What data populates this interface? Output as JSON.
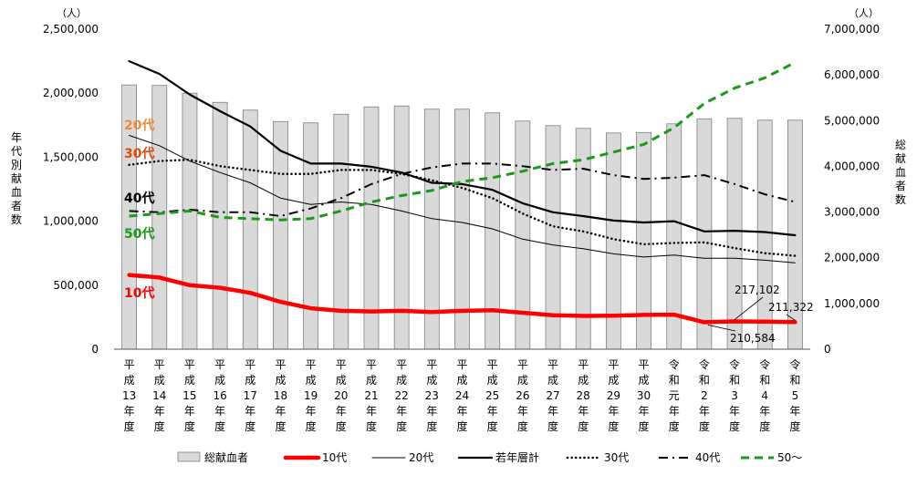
{
  "chart_data": {
    "type": "bar+line",
    "categories": [
      [
        "平",
        "成",
        "13",
        "年",
        "度"
      ],
      [
        "平",
        "成",
        "14",
        "年",
        "度"
      ],
      [
        "平",
        "成",
        "15",
        "年",
        "度"
      ],
      [
        "平",
        "成",
        "16",
        "年",
        "度"
      ],
      [
        "平",
        "成",
        "17",
        "年",
        "度"
      ],
      [
        "平",
        "成",
        "18",
        "年",
        "度"
      ],
      [
        "平",
        "成",
        "19",
        "年",
        "度"
      ],
      [
        "平",
        "成",
        "20",
        "年",
        "度"
      ],
      [
        "平",
        "成",
        "21",
        "年",
        "度"
      ],
      [
        "平",
        "成",
        "22",
        "年",
        "度"
      ],
      [
        "平",
        "成",
        "23",
        "年",
        "度"
      ],
      [
        "平",
        "成",
        "24",
        "年",
        "度"
      ],
      [
        "平",
        "成",
        "25",
        "年",
        "度"
      ],
      [
        "平",
        "成",
        "26",
        "年",
        "度"
      ],
      [
        "平",
        "成",
        "27",
        "年",
        "度"
      ],
      [
        "平",
        "成",
        "28",
        "年",
        "度"
      ],
      [
        "平",
        "成",
        "29",
        "年",
        "度"
      ],
      [
        "平",
        "成",
        "30",
        "年",
        "度"
      ],
      [
        "令",
        "和",
        "元",
        "年",
        "度"
      ],
      [
        "令",
        "和",
        "2",
        "年",
        "度"
      ],
      [
        "令",
        "和",
        "3",
        "年",
        "度"
      ],
      [
        "令",
        "和",
        "4",
        "年",
        "度"
      ],
      [
        "令",
        "和",
        "5",
        "年",
        "度"
      ]
    ],
    "left_axis": {
      "label": "年代別献血者数",
      "unit": "（人）",
      "ylim": [
        0,
        2500000
      ],
      "ticks": [
        {
          "value": 0,
          "label": "0"
        },
        {
          "value": 500000,
          "label": "500,000"
        },
        {
          "value": 1000000,
          "label": "1,000,000"
        },
        {
          "value": 1500000,
          "label": "1,500,000"
        },
        {
          "value": 2000000,
          "label": "2,000,000"
        },
        {
          "value": 2500000,
          "label": "2,500,000"
        }
      ]
    },
    "right_axis": {
      "label": "総献血者数",
      "unit": "（人）",
      "ylim": [
        0,
        7000000
      ],
      "ticks": [
        {
          "value": 0,
          "label": "0"
        },
        {
          "value": 1000000,
          "label": "1,000,000"
        },
        {
          "value": 2000000,
          "label": "2,000,000"
        },
        {
          "value": 3000000,
          "label": "3,000,000"
        },
        {
          "value": 4000000,
          "label": "4,000,000"
        },
        {
          "value": 5000000,
          "label": "5,000,000"
        },
        {
          "value": 6000000,
          "label": "6,000,000"
        },
        {
          "value": 7000000,
          "label": "7,000,000"
        }
      ]
    },
    "bars": {
      "name": "総献血者",
      "axis": "right",
      "color": "#d9d9d9",
      "values": [
        5780000,
        5770000,
        5600000,
        5400000,
        5230000,
        4980000,
        4950000,
        5140000,
        5300000,
        5320000,
        5250000,
        5250000,
        5170000,
        4990000,
        4890000,
        4830000,
        4730000,
        4740000,
        4930000,
        5040000,
        5050000,
        5010000,
        5010000
      ]
    },
    "series": [
      {
        "name": "10代",
        "color": "#ff0000",
        "style": "thick",
        "values": [
          580000,
          560000,
          500000,
          480000,
          440000,
          370000,
          320000,
          300000,
          295000,
          300000,
          290000,
          300000,
          305000,
          285000,
          265000,
          260000,
          262000,
          268000,
          270000,
          210584,
          217102,
          215000,
          211322
        ]
      },
      {
        "name": "20代",
        "color": "#000000",
        "style": "thin",
        "values": [
          1670000,
          1590000,
          1470000,
          1380000,
          1300000,
          1180000,
          1130000,
          1150000,
          1130000,
          1080000,
          1020000,
          990000,
          940000,
          860000,
          815000,
          785000,
          745000,
          720000,
          735000,
          710000,
          710000,
          695000,
          675000
        ]
      },
      {
        "name": "若年層計",
        "color": "#000000",
        "style": "medium",
        "values": [
          2250000,
          2150000,
          1990000,
          1860000,
          1740000,
          1550000,
          1450000,
          1450000,
          1425000,
          1380000,
          1300000,
          1290000,
          1245000,
          1140000,
          1070000,
          1040000,
          1005000,
          990000,
          1000000,
          920000,
          925000,
          915000,
          890000
        ]
      },
      {
        "name": "30代",
        "color": "#000000",
        "style": "dotted",
        "values": [
          1440000,
          1470000,
          1480000,
          1430000,
          1400000,
          1370000,
          1370000,
          1400000,
          1400000,
          1370000,
          1320000,
          1260000,
          1180000,
          1060000,
          960000,
          920000,
          860000,
          820000,
          830000,
          835000,
          790000,
          750000,
          730000
        ]
      },
      {
        "name": "40代",
        "color": "#000000",
        "style": "dashdot",
        "values": [
          1080000,
          1070000,
          1090000,
          1070000,
          1070000,
          1040000,
          1100000,
          1180000,
          1290000,
          1370000,
          1420000,
          1450000,
          1450000,
          1430000,
          1400000,
          1410000,
          1360000,
          1330000,
          1340000,
          1360000,
          1290000,
          1210000,
          1150000
        ]
      },
      {
        "name": "50～",
        "color": "#1a9a1a",
        "style": "dashed",
        "values": [
          1040000,
          1060000,
          1080000,
          1030000,
          1020000,
          1010000,
          1020000,
          1080000,
          1150000,
          1200000,
          1240000,
          1310000,
          1340000,
          1390000,
          1450000,
          1480000,
          1540000,
          1600000,
          1730000,
          1920000,
          2040000,
          2120000,
          2240000
        ]
      }
    ],
    "inline_labels": [
      {
        "text": "20代",
        "color": "#f28a3a",
        "series": "20代"
      },
      {
        "text": "30代",
        "color": "#e04a10",
        "series": "30代"
      },
      {
        "text": "40代",
        "color": "#000000",
        "series": "40代"
      },
      {
        "text": "50代",
        "color": "#1a9a1a",
        "series": "50～"
      },
      {
        "text": "10代",
        "color": "#ff0000",
        "series": "10代"
      }
    ],
    "annotations": [
      {
        "text": "217,102",
        "category_index": 20
      },
      {
        "text": "211,322",
        "category_index": 22
      },
      {
        "text": "210,584",
        "category_index": 19
      }
    ],
    "legend": {
      "placement": "bottom",
      "items": [
        "総献血者",
        "10代",
        "20代",
        "若年層計",
        "30代",
        "40代",
        "50～"
      ]
    }
  }
}
